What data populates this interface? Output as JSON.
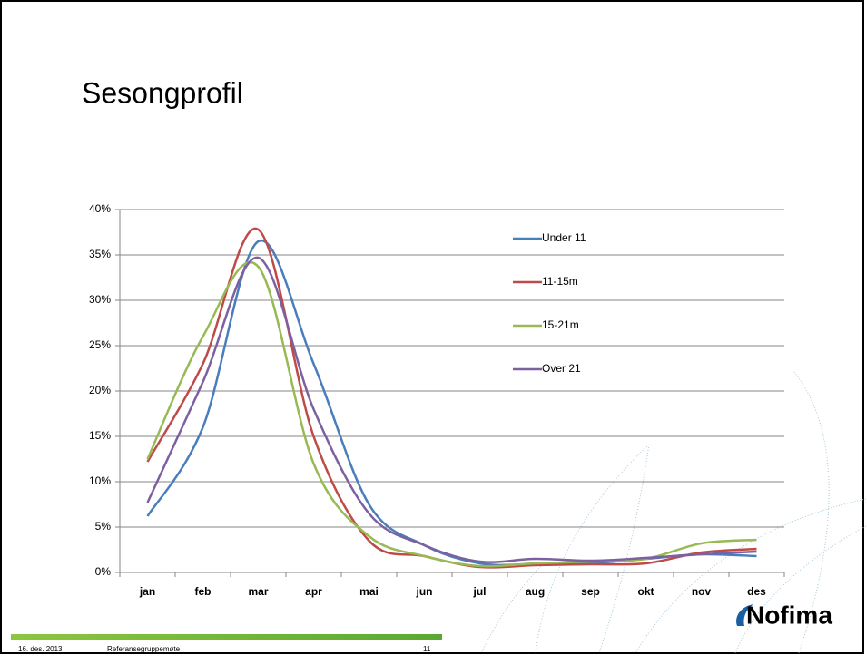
{
  "chart_data": {
    "type": "line",
    "title": "Sesongprofil",
    "categories": [
      "jan",
      "feb",
      "mar",
      "apr",
      "mai",
      "jun",
      "jul",
      "aug",
      "sep",
      "okt",
      "nov",
      "des"
    ],
    "series": [
      {
        "name": "Under 11",
        "color": "#4a7ebb",
        "values": [
          6.2,
          16,
          36.5,
          23,
          7.5,
          3,
          1.0,
          0.9,
          1.0,
          1.5,
          2.0,
          1.8
        ]
      },
      {
        "name": "11-15m",
        "color": "#be4b48",
        "values": [
          12.2,
          23,
          37.8,
          15,
          3.5,
          1.8,
          0.6,
          0.8,
          0.9,
          1.0,
          2.2,
          2.6
        ]
      },
      {
        "name": "15-21m",
        "color": "#98b954",
        "values": [
          12.5,
          26,
          33.7,
          12,
          4,
          1.8,
          0.7,
          1.0,
          1.2,
          1.5,
          3.2,
          3.6
        ]
      },
      {
        "name": "Over 21",
        "color": "#7d60a0",
        "values": [
          7.7,
          21,
          34.7,
          18,
          6.5,
          3,
          1.2,
          1.5,
          1.3,
          1.6,
          2.0,
          2.3
        ]
      }
    ],
    "ylim": [
      0,
      40
    ],
    "yticks": [
      {
        "value": 0,
        "label": "0%"
      },
      {
        "value": 5,
        "label": "5%"
      },
      {
        "value": 10,
        "label": "10%"
      },
      {
        "value": 15,
        "label": "15%"
      },
      {
        "value": 20,
        "label": "20%"
      },
      {
        "value": 25,
        "label": "25%"
      },
      {
        "value": 30,
        "label": "30%"
      },
      {
        "value": 35,
        "label": "35%"
      },
      {
        "value": 40,
        "label": "40%"
      }
    ],
    "grid": true,
    "smooth": true
  },
  "footer": {
    "date": "16. des. 2013",
    "title": "Referansegruppemøte",
    "page": "11"
  },
  "logo": "Nofima"
}
